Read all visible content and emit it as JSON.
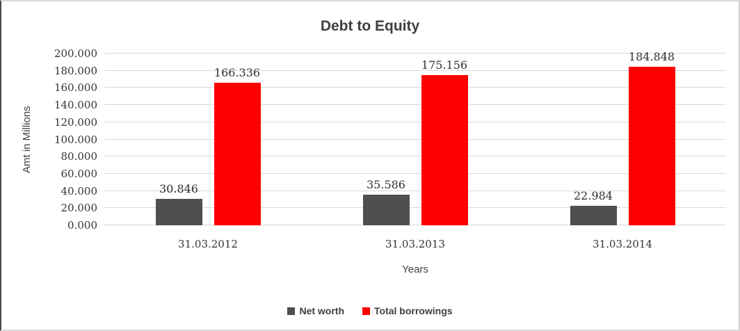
{
  "window": {
    "background": "#ffffff",
    "frame_border_color": "#d9d9d9"
  },
  "chart_data": {
    "type": "bar",
    "title": "Debt to Equity",
    "xlabel": "Years",
    "ylabel": "Amt in Millions",
    "categories": [
      "31.03.2012",
      "31.03.2013",
      "31.03.2014"
    ],
    "series": [
      {
        "name": "Net worth",
        "color": "#4f4f4f",
        "values": [
          30.846,
          35.586,
          22.984
        ],
        "labels": [
          "30.846",
          "35.586",
          "22.984"
        ]
      },
      {
        "name": "Total borrowings",
        "color": "#ff0000",
        "values": [
          166.336,
          175.156,
          184.848
        ],
        "labels": [
          "166.336",
          "175.156",
          "184.848"
        ]
      }
    ],
    "ylim": [
      0,
      200
    ],
    "ytick_step": 20,
    "ytick_labels": [
      "0.000",
      "20.000",
      "40.000",
      "60.000",
      "80.000",
      "100.000",
      "120.000",
      "140.000",
      "160.000",
      "180.000",
      "200.000"
    ],
    "grid": true,
    "gridline_color": "#d9d9d9",
    "legend_position": "bottom",
    "text_color": "#3f3f3f"
  }
}
